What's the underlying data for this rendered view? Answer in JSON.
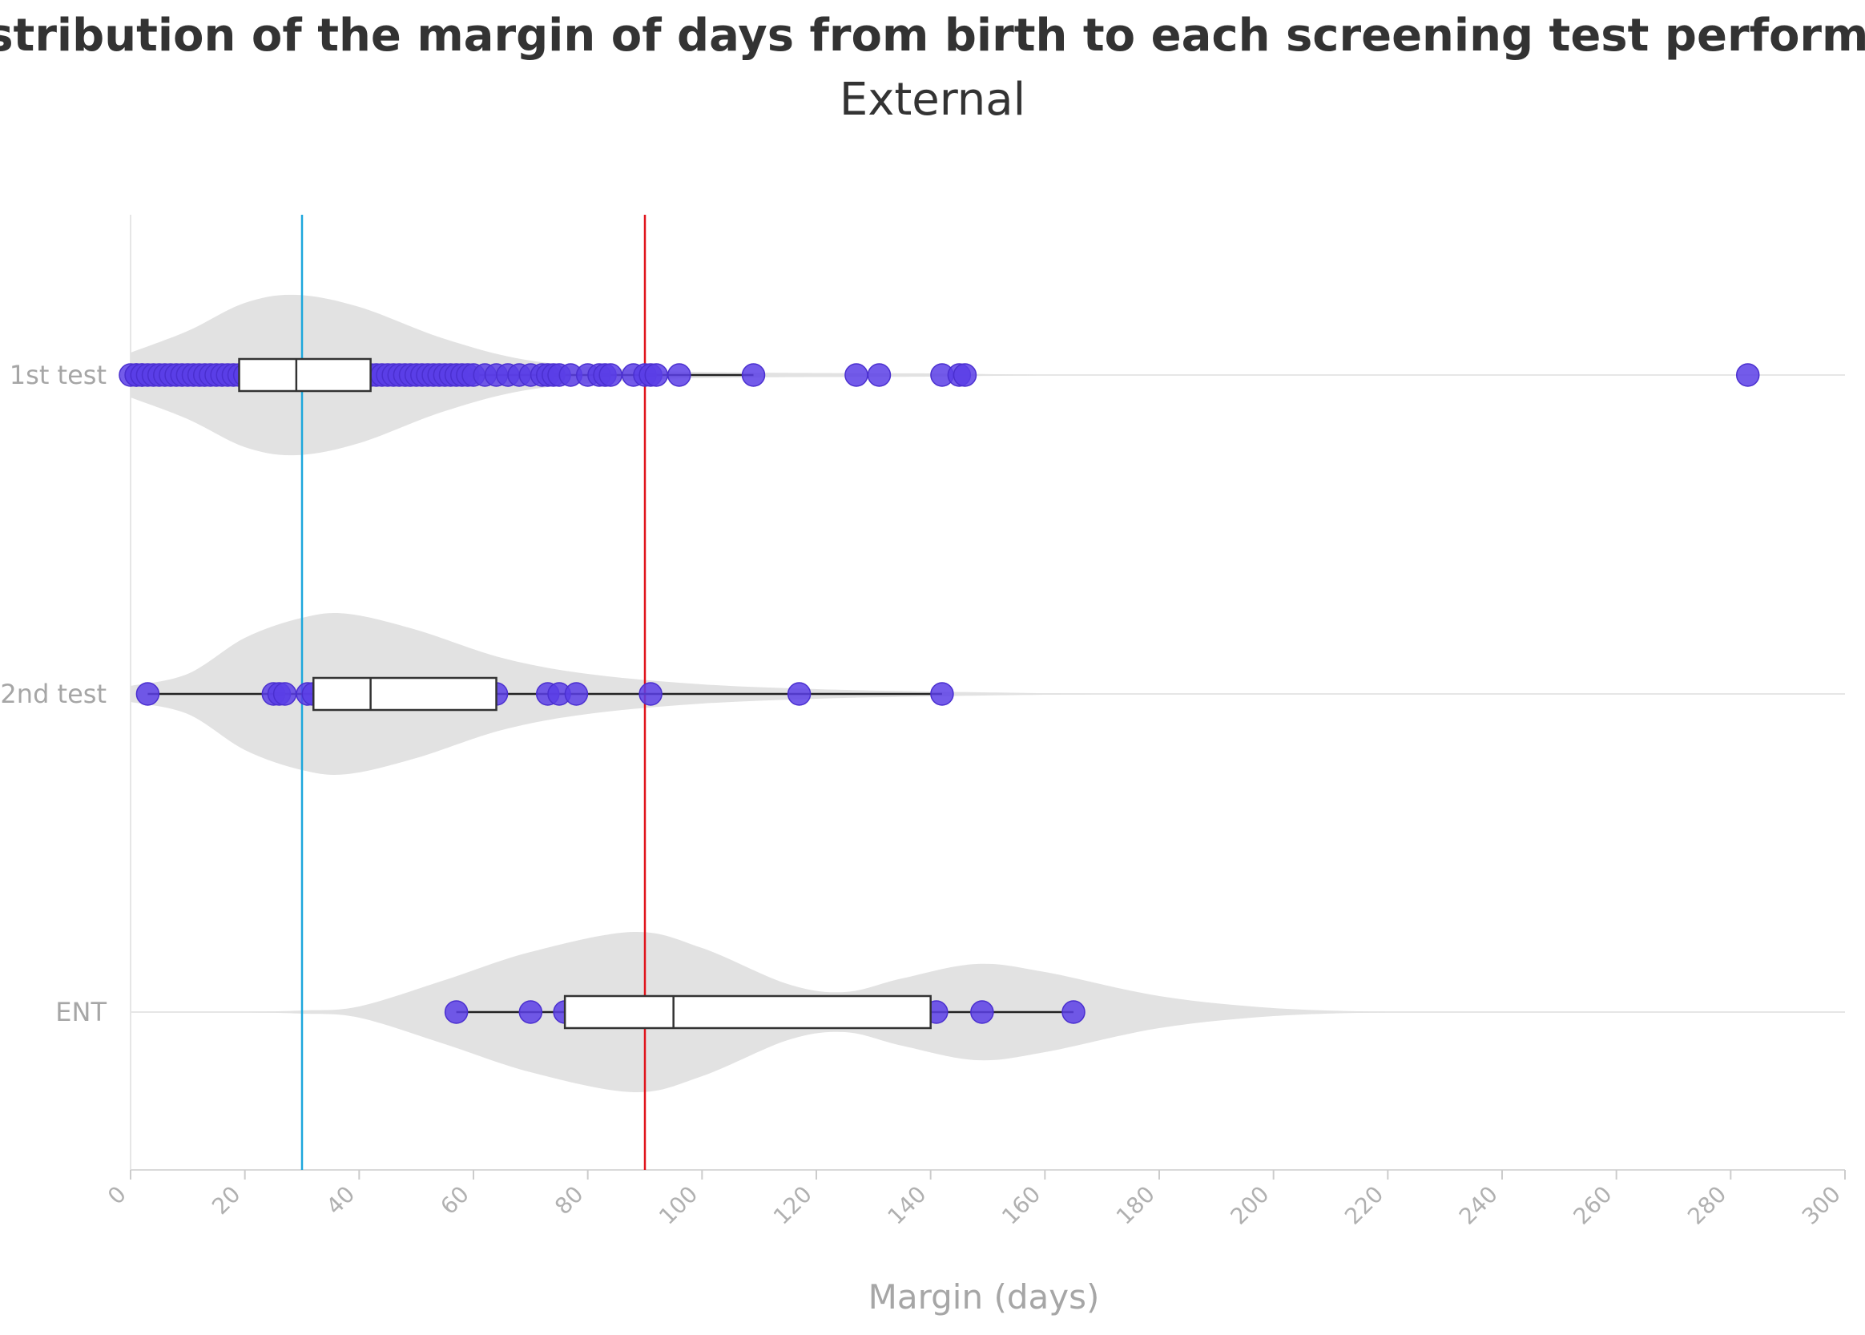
{
  "chart_data": {
    "type": "violin",
    "title": "Distribution of the margin of days from birth to each screening test performed",
    "subtitle": "External",
    "xlabel": "Margin (days)",
    "ylabel": "",
    "xlim": [
      0,
      300
    ],
    "xticks": [
      0,
      20,
      40,
      60,
      80,
      100,
      120,
      140,
      160,
      180,
      200,
      220,
      240,
      260,
      280,
      300
    ],
    "categories": [
      "1st test",
      "2nd test",
      "ENT"
    ],
    "reference_lines": [
      {
        "name": "30 days",
        "x": 30,
        "color": "#1ea7dc"
      },
      {
        "name": "90 days",
        "x": 90,
        "color": "#e0141c"
      }
    ],
    "colors": {
      "points": "#5b3ee6",
      "violin": "#e2e2e2",
      "box": "#ffffff",
      "box_stroke": "#333333",
      "grid": "#e6e6e6"
    },
    "series": [
      {
        "name": "1st test",
        "box": {
          "min": 0,
          "q1": 19,
          "median": 29,
          "q3": 42,
          "max": 109
        },
        "points": [
          0,
          1,
          1,
          2,
          2,
          3,
          4,
          5,
          6,
          7,
          8,
          9,
          10,
          11,
          12,
          13,
          14,
          15,
          16,
          17,
          18,
          19,
          20,
          21,
          22,
          23,
          24,
          25,
          26,
          27,
          28,
          29,
          30,
          31,
          32,
          33,
          34,
          35,
          36,
          37,
          38,
          39,
          40,
          41,
          42,
          43,
          44,
          45,
          46,
          47,
          48,
          49,
          50,
          51,
          52,
          53,
          54,
          55,
          56,
          57,
          58,
          59,
          60,
          62,
          64,
          66,
          68,
          70,
          72,
          73,
          74,
          75,
          77,
          80,
          82,
          83,
          84,
          88,
          90,
          91,
          92,
          96,
          109,
          127,
          131,
          142,
          145,
          146,
          283
        ],
        "density": [
          [
            0,
            0.28
          ],
          [
            10,
            0.55
          ],
          [
            20,
            0.9
          ],
          [
            29,
            1.0
          ],
          [
            40,
            0.85
          ],
          [
            55,
            0.45
          ],
          [
            70,
            0.18
          ],
          [
            90,
            0.06
          ],
          [
            110,
            0.03
          ],
          [
            140,
            0.02
          ],
          [
            160,
            0.0
          ]
        ]
      },
      {
        "name": "2nd test",
        "box": {
          "min": 3,
          "q1": 32,
          "median": 42,
          "q3": 64,
          "max": 142
        },
        "points": [
          3,
          25,
          26,
          27,
          31,
          32,
          64,
          73,
          75,
          78,
          91,
          117,
          142
        ],
        "density": [
          [
            0,
            0.1
          ],
          [
            10,
            0.25
          ],
          [
            20,
            0.7
          ],
          [
            30,
            0.95
          ],
          [
            38,
            1.0
          ],
          [
            50,
            0.8
          ],
          [
            65,
            0.45
          ],
          [
            80,
            0.25
          ],
          [
            100,
            0.12
          ],
          [
            120,
            0.06
          ],
          [
            140,
            0.03
          ],
          [
            170,
            0.0
          ]
        ]
      },
      {
        "name": "ENT",
        "box": {
          "min": 57,
          "q1": 76,
          "median": 95,
          "q3": 140,
          "max": 165
        },
        "points": [
          57,
          70,
          76,
          141,
          149,
          165
        ],
        "density": [
          [
            20,
            0.0
          ],
          [
            30,
            0.02
          ],
          [
            40,
            0.07
          ],
          [
            55,
            0.4
          ],
          [
            70,
            0.75
          ],
          [
            88,
            1.0
          ],
          [
            100,
            0.8
          ],
          [
            115,
            0.35
          ],
          [
            125,
            0.25
          ],
          [
            135,
            0.42
          ],
          [
            148,
            0.6
          ],
          [
            160,
            0.5
          ],
          [
            180,
            0.2
          ],
          [
            200,
            0.05
          ],
          [
            220,
            0.0
          ]
        ]
      }
    ]
  }
}
